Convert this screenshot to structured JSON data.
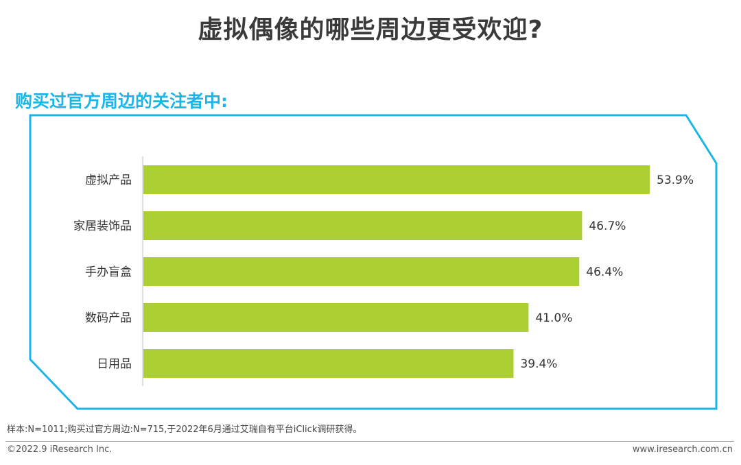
{
  "header": {
    "title": "虚拟偶像的哪些周边更受欢迎?",
    "subtitle": "购买过官方周边的关注者中:"
  },
  "chart_data": {
    "type": "bar",
    "orientation": "horizontal",
    "categories": [
      "虚拟产品",
      "家居装饰品",
      "手办盲盒",
      "数码产品",
      "日用品"
    ],
    "values": [
      53.9,
      46.7,
      46.4,
      41.0,
      39.4
    ],
    "value_labels": [
      "53.9%",
      "46.7%",
      "46.4%",
      "41.0%",
      "39.4%"
    ],
    "unit": "%",
    "xlim": [
      0,
      55
    ],
    "grid": false,
    "legend": "none",
    "bar_color": "#acd033"
  },
  "footer": {
    "note": "样本:N=1011;购买过官方周边:N=715,于2022年6月通过艾瑞自有平台iClick调研获得。",
    "copyright": "©2022.9 iResearch Inc.",
    "website": "www.iresearch.com.cn"
  },
  "colors": {
    "title": "#3a3a3a",
    "accent": "#1bb5e8",
    "bar": "#acd033"
  }
}
